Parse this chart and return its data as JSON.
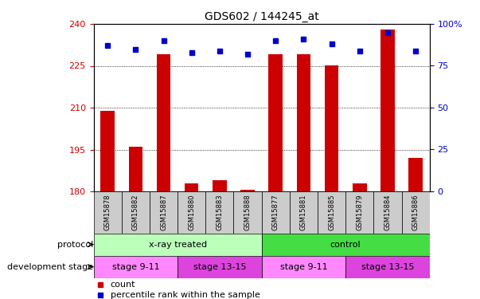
{
  "title": "GDS602 / 144245_at",
  "samples": [
    "GSM15878",
    "GSM15882",
    "GSM15887",
    "GSM15880",
    "GSM15883",
    "GSM15888",
    "GSM15877",
    "GSM15881",
    "GSM15885",
    "GSM15879",
    "GSM15884",
    "GSM15886"
  ],
  "counts": [
    209,
    196,
    229,
    183,
    184,
    180.5,
    229,
    229,
    225,
    183,
    238,
    192
  ],
  "percentiles": [
    87,
    85,
    90,
    83,
    84,
    82,
    90,
    91,
    88,
    84,
    95,
    84
  ],
  "ylim_left": [
    180,
    240
  ],
  "ylim_right": [
    0,
    100
  ],
  "yticks_left": [
    180,
    195,
    210,
    225,
    240
  ],
  "yticks_right": [
    0,
    25,
    50,
    75,
    100
  ],
  "bar_color": "#cc0000",
  "dot_color": "#0000cc",
  "protocol_groups": [
    {
      "label": "x-ray treated",
      "start": 0,
      "end": 5,
      "color": "#bbffbb"
    },
    {
      "label": "control",
      "start": 6,
      "end": 11,
      "color": "#44dd44"
    }
  ],
  "stage_groups": [
    {
      "label": "stage 9-11",
      "start": 0,
      "end": 2,
      "color": "#ff88ff"
    },
    {
      "label": "stage 13-15",
      "start": 3,
      "end": 5,
      "color": "#dd44dd"
    },
    {
      "label": "stage 9-11",
      "start": 6,
      "end": 8,
      "color": "#ff88ff"
    },
    {
      "label": "stage 13-15",
      "start": 9,
      "end": 11,
      "color": "#dd44dd"
    }
  ],
  "protocol_label": "protocol",
  "stage_label": "development stage",
  "legend_count_label": "count",
  "legend_pct_label": "percentile rank within the sample",
  "bg_color": "#ffffff",
  "tick_label_color_left": "#cc0000",
  "tick_label_color_right": "#0000cc",
  "sample_box_color": "#cccccc",
  "bar_width": 0.5,
  "figsize": [
    6.03,
    3.75
  ],
  "dpi": 100
}
